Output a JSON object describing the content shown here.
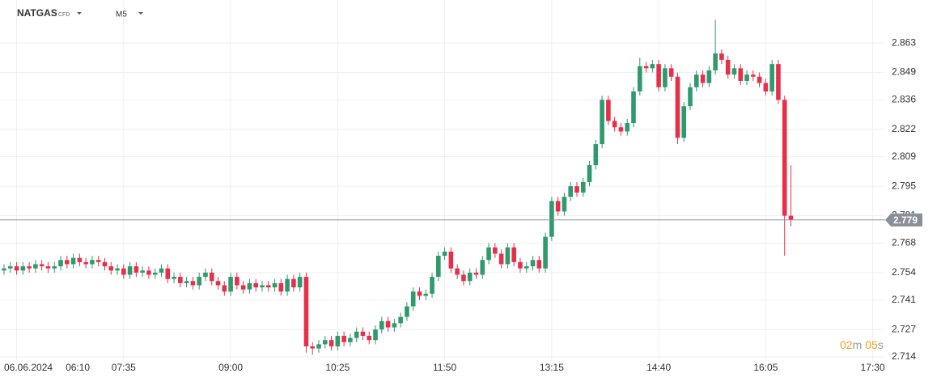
{
  "chart_data": {
    "type": "candlestick",
    "symbol": "NATGAS",
    "instrument_type": "CFD",
    "timeframe": "M5",
    "date": "06.06.2024",
    "categories": [
      null,
      null,
      "06:10",
      null,
      null,
      null,
      null,
      null,
      null,
      null,
      null,
      null,
      null,
      null,
      null,
      null,
      null,
      null,
      null,
      "07:35",
      null,
      null,
      null,
      null,
      null,
      null,
      null,
      null,
      null,
      null,
      null,
      null,
      null,
      null,
      null,
      null,
      "09:00",
      null,
      null,
      null,
      null,
      null,
      null,
      null,
      null,
      null,
      null,
      null,
      null,
      null,
      null,
      null,
      null,
      "10:25",
      null,
      null,
      null,
      null,
      null,
      null,
      null,
      null,
      null,
      null,
      null,
      null,
      null,
      null,
      null,
      null,
      "11:50",
      null,
      null,
      null,
      null,
      null,
      null,
      null,
      null,
      null,
      null,
      null,
      null,
      null,
      null,
      null,
      null,
      "13:15",
      null,
      null,
      null,
      null,
      null,
      null,
      null,
      null,
      null,
      null,
      null,
      null,
      null,
      null,
      null,
      null,
      "14:40",
      null,
      null,
      null,
      null,
      null,
      null,
      null,
      null,
      null,
      null,
      null,
      null,
      null,
      null,
      null,
      null,
      "16:05",
      null,
      null,
      null,
      null,
      null,
      null,
      null,
      null,
      null,
      null,
      null,
      null,
      null,
      null,
      null,
      null,
      "17:30",
      null
    ],
    "open": [
      2.755,
      2.756,
      2.757,
      2.755,
      2.757,
      2.756,
      2.758,
      2.757,
      2.756,
      2.757,
      2.76,
      2.758,
      2.761,
      2.759,
      2.758,
      2.76,
      2.759,
      2.757,
      2.755,
      2.756,
      2.753,
      2.757,
      2.754,
      2.755,
      2.753,
      2.754,
      2.756,
      2.751,
      2.752,
      2.749,
      2.75,
      2.748,
      2.752,
      2.754,
      2.75,
      2.748,
      2.745,
      2.752,
      2.748,
      2.746,
      2.749,
      2.747,
      2.748,
      2.747,
      2.749,
      2.745,
      2.751,
      2.747,
      2.752,
      2.719,
      2.718,
      2.72,
      2.722,
      2.719,
      2.724,
      2.721,
      2.723,
      2.726,
      2.724,
      2.722,
      2.727,
      2.731,
      2.728,
      2.73,
      2.733,
      2.738,
      2.745,
      2.743,
      2.744,
      2.752,
      2.762,
      2.764,
      2.756,
      2.753,
      2.75,
      2.754,
      2.753,
      2.76,
      2.766,
      2.763,
      2.758,
      2.766,
      2.759,
      2.756,
      2.757,
      2.76,
      2.756,
      2.771,
      2.788,
      2.783,
      2.79,
      2.795,
      2.792,
      2.797,
      2.805,
      2.815,
      2.836,
      2.826,
      2.823,
      2.821,
      2.825,
      2.84,
      2.852,
      2.851,
      2.853,
      2.842,
      2.851,
      2.847,
      2.818,
      2.833,
      2.842,
      2.848,
      2.844,
      2.85,
      2.858,
      2.855,
      2.848,
      2.851,
      2.845,
      2.848,
      2.847,
      2.844,
      2.84,
      2.853,
      2.836,
      2.781,
      null,
      null,
      null,
      null,
      null,
      null,
      null,
      null,
      null,
      null,
      null,
      null,
      null,
      null
    ],
    "high": [
      2.758,
      2.759,
      2.759,
      2.759,
      2.759,
      2.76,
      2.76,
      2.759,
      2.759,
      2.762,
      2.762,
      2.763,
      2.763,
      2.761,
      2.762,
      2.762,
      2.761,
      2.759,
      2.758,
      2.758,
      2.759,
      2.759,
      2.757,
      2.757,
      2.756,
      2.758,
      2.758,
      2.754,
      2.754,
      2.752,
      2.752,
      2.754,
      2.756,
      2.756,
      2.752,
      2.75,
      2.754,
      2.754,
      2.75,
      2.751,
      2.751,
      2.75,
      2.75,
      2.751,
      2.751,
      2.753,
      2.753,
      2.754,
      2.754,
      2.721,
      2.722,
      2.724,
      2.724,
      2.726,
      2.726,
      2.725,
      2.728,
      2.728,
      2.726,
      2.729,
      2.733,
      2.733,
      2.732,
      2.735,
      2.74,
      2.747,
      2.747,
      2.746,
      2.754,
      2.764,
      2.766,
      2.766,
      2.758,
      2.755,
      2.756,
      2.756,
      2.762,
      2.768,
      2.768,
      2.765,
      2.768,
      2.768,
      2.761,
      2.759,
      2.762,
      2.762,
      2.773,
      2.79,
      2.79,
      2.792,
      2.797,
      2.797,
      2.799,
      2.807,
      2.817,
      2.838,
      2.838,
      2.828,
      2.825,
      2.827,
      2.842,
      2.856,
      2.854,
      2.855,
      2.855,
      2.853,
      2.853,
      2.849,
      2.835,
      2.844,
      2.85,
      2.85,
      2.852,
      2.874,
      2.86,
      2.857,
      2.853,
      2.853,
      2.85,
      2.85,
      2.849,
      2.846,
      2.855,
      2.855,
      2.838,
      2.805,
      null,
      null,
      null,
      null,
      null,
      null,
      null,
      null,
      null,
      null,
      null,
      null,
      null,
      null
    ],
    "low": [
      2.753,
      2.754,
      2.753,
      2.753,
      2.754,
      2.754,
      2.755,
      2.754,
      2.754,
      2.755,
      2.756,
      2.756,
      2.757,
      2.756,
      2.756,
      2.757,
      2.755,
      2.753,
      2.753,
      2.751,
      2.751,
      2.752,
      2.752,
      2.751,
      2.751,
      2.752,
      2.749,
      2.749,
      2.747,
      2.747,
      2.746,
      2.746,
      2.75,
      2.748,
      2.746,
      2.743,
      2.743,
      2.746,
      2.744,
      2.744,
      2.745,
      2.745,
      2.745,
      2.745,
      2.743,
      2.743,
      2.745,
      2.745,
      2.716,
      2.715,
      2.716,
      2.718,
      2.717,
      2.717,
      2.719,
      2.719,
      2.721,
      2.722,
      2.72,
      2.72,
      2.725,
      2.726,
      2.726,
      2.728,
      2.731,
      2.736,
      2.741,
      2.741,
      2.742,
      2.75,
      2.76,
      2.754,
      2.751,
      2.748,
      2.748,
      2.751,
      2.751,
      2.758,
      2.761,
      2.756,
      2.756,
      2.757,
      2.754,
      2.754,
      2.755,
      2.754,
      2.754,
      2.769,
      2.781,
      2.781,
      2.788,
      2.79,
      2.79,
      2.795,
      2.803,
      2.813,
      2.824,
      2.821,
      2.819,
      2.819,
      2.823,
      2.838,
      2.849,
      2.849,
      2.84,
      2.84,
      2.845,
      2.815,
      2.816,
      2.831,
      2.84,
      2.842,
      2.842,
      2.848,
      2.853,
      2.846,
      2.846,
      2.843,
      2.843,
      2.845,
      2.842,
      2.838,
      2.838,
      2.834,
      2.762,
      2.776,
      null,
      null,
      null,
      null,
      null,
      null,
      null,
      null,
      null,
      null,
      null,
      null,
      null,
      null
    ],
    "close": [
      2.756,
      2.757,
      2.755,
      2.757,
      2.756,
      2.758,
      2.757,
      2.756,
      2.757,
      2.76,
      2.758,
      2.761,
      2.759,
      2.758,
      2.76,
      2.759,
      2.757,
      2.755,
      2.756,
      2.753,
      2.757,
      2.754,
      2.755,
      2.753,
      2.754,
      2.756,
      2.751,
      2.752,
      2.749,
      2.75,
      2.748,
      2.752,
      2.754,
      2.75,
      2.748,
      2.745,
      2.752,
      2.748,
      2.746,
      2.749,
      2.747,
      2.748,
      2.747,
      2.749,
      2.745,
      2.751,
      2.747,
      2.752,
      2.719,
      2.718,
      2.72,
      2.722,
      2.719,
      2.724,
      2.721,
      2.723,
      2.726,
      2.724,
      2.722,
      2.727,
      2.731,
      2.728,
      2.73,
      2.733,
      2.738,
      2.745,
      2.743,
      2.744,
      2.752,
      2.762,
      2.764,
      2.756,
      2.753,
      2.75,
      2.754,
      2.753,
      2.76,
      2.766,
      2.763,
      2.758,
      2.766,
      2.759,
      2.756,
      2.757,
      2.76,
      2.756,
      2.771,
      2.788,
      2.783,
      2.79,
      2.795,
      2.792,
      2.797,
      2.805,
      2.815,
      2.836,
      2.826,
      2.823,
      2.821,
      2.825,
      2.84,
      2.852,
      2.851,
      2.853,
      2.842,
      2.851,
      2.847,
      2.818,
      2.833,
      2.842,
      2.848,
      2.844,
      2.85,
      2.858,
      2.855,
      2.848,
      2.851,
      2.845,
      2.848,
      2.847,
      2.844,
      2.84,
      2.853,
      2.836,
      2.781,
      2.779,
      null,
      null,
      null,
      null,
      null,
      null,
      null,
      null,
      null,
      null,
      null,
      null,
      null,
      null
    ],
    "up_color": "#2e9a6e",
    "down_color": "#e6304a",
    "last_price": 2.779,
    "ylim": [
      2.7067,
      2.8834
    ],
    "yticks": [
      2.714,
      2.727,
      2.741,
      2.754,
      2.768,
      2.781,
      2.795,
      2.809,
      2.822,
      2.836,
      2.849,
      2.863
    ],
    "grid": true,
    "timer": [
      "02",
      "m",
      "05",
      "s"
    ]
  }
}
